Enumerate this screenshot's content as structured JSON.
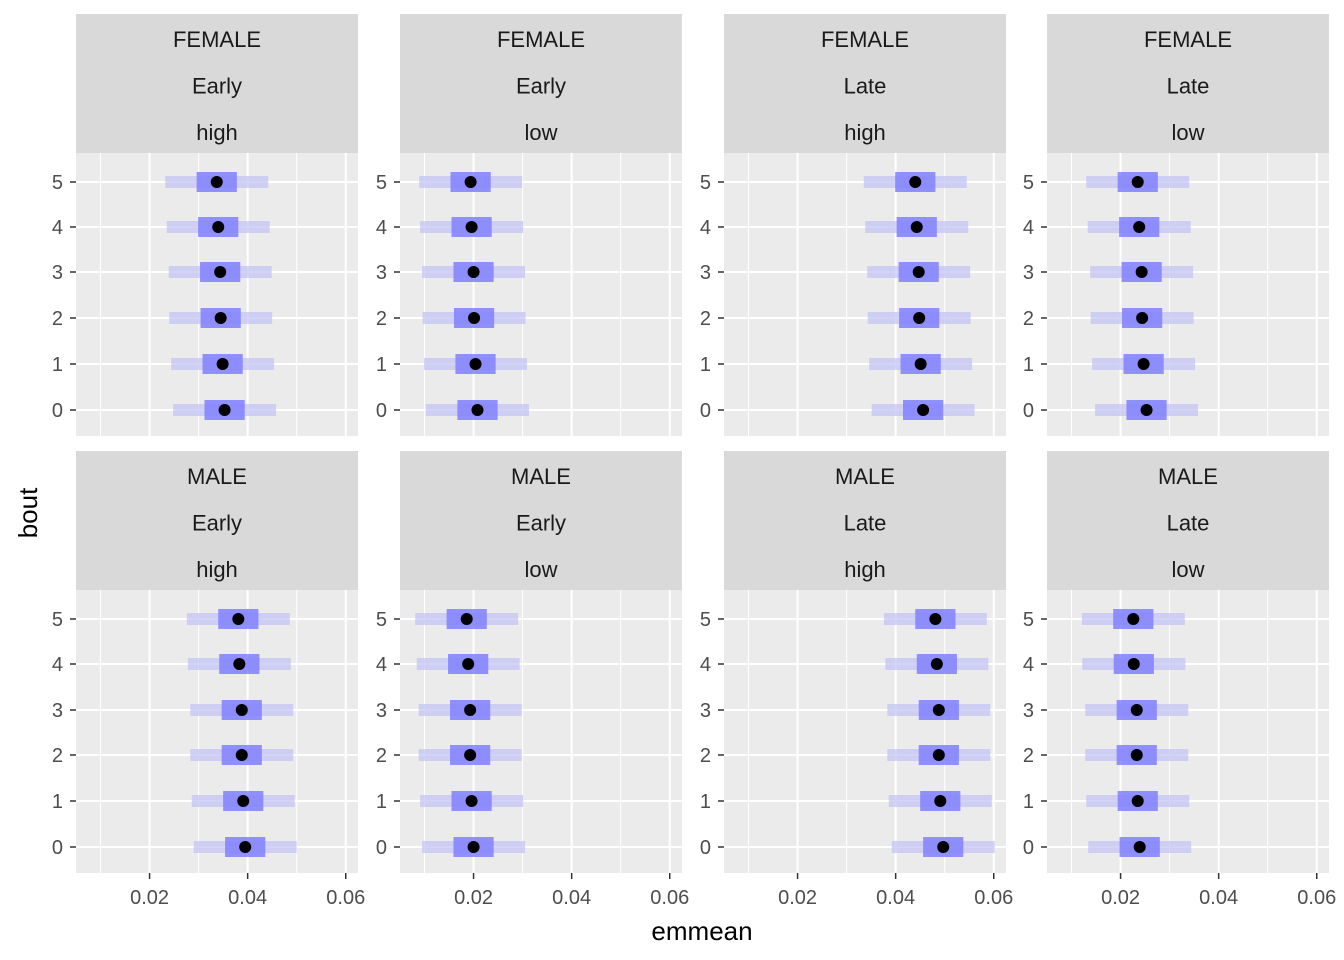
{
  "chart_data": {
    "type": "faceted-interval-dot",
    "x_label": "emmean",
    "y_label": "bout",
    "x_ticks": [
      0.02,
      0.04,
      0.06
    ],
    "x_tick_labels": [
      "0.02",
      "0.04",
      "0.06"
    ],
    "xlim": [
      0.005,
      0.0625
    ],
    "y_categories": [
      "0",
      "1",
      "2",
      "3",
      "4",
      "5"
    ],
    "colors": {
      "panel_bg": "#EBEBEB",
      "strip_bg": "#D9D9D9",
      "grid": "#FFFFFF",
      "point": "#000000",
      "inner_interval": "#8080FF",
      "outer_interval": "#C4C4F4"
    },
    "facets": [
      {
        "strip": [
          "FEMALE",
          "Early",
          "high"
        ],
        "bout": [
          "0",
          "1",
          "2",
          "3",
          "4",
          "5"
        ],
        "emmean": [
          0.0353,
          0.0349,
          0.0345,
          0.0344,
          0.034,
          0.0337
        ],
        "inner": [
          [
            0.0312,
            0.0394
          ],
          [
            0.0308,
            0.039
          ],
          [
            0.0304,
            0.0386
          ],
          [
            0.0303,
            0.0385
          ],
          [
            0.0299,
            0.0381
          ],
          [
            0.0296,
            0.0378
          ]
        ],
        "outer": [
          [
            0.0248,
            0.0458
          ],
          [
            0.0244,
            0.0454
          ],
          [
            0.024,
            0.045
          ],
          [
            0.0239,
            0.0449
          ],
          [
            0.0235,
            0.0445
          ],
          [
            0.0232,
            0.0442
          ]
        ]
      },
      {
        "strip": [
          "FEMALE",
          "Early",
          "low"
        ],
        "bout": [
          "0",
          "1",
          "2",
          "3",
          "4",
          "5"
        ],
        "emmean": [
          0.0208,
          0.0204,
          0.0201,
          0.02,
          0.0196,
          0.0194
        ],
        "inner": [
          [
            0.0167,
            0.0249
          ],
          [
            0.0163,
            0.0245
          ],
          [
            0.016,
            0.0242
          ],
          [
            0.0159,
            0.0241
          ],
          [
            0.0155,
            0.0237
          ],
          [
            0.0153,
            0.0235
          ]
        ],
        "outer": [
          [
            0.0103,
            0.0313
          ],
          [
            0.0099,
            0.0309
          ],
          [
            0.0096,
            0.0306
          ],
          [
            0.0095,
            0.0305
          ],
          [
            0.0091,
            0.0301
          ],
          [
            0.0089,
            0.0299
          ]
        ]
      },
      {
        "strip": [
          "FEMALE",
          "Late",
          "high"
        ],
        "bout": [
          "0",
          "1",
          "2",
          "3",
          "4",
          "5"
        ],
        "emmean": [
          0.0456,
          0.0451,
          0.0448,
          0.0447,
          0.0443,
          0.044
        ],
        "inner": [
          [
            0.0415,
            0.0497
          ],
          [
            0.041,
            0.0492
          ],
          [
            0.0407,
            0.0489
          ],
          [
            0.0406,
            0.0488
          ],
          [
            0.0402,
            0.0484
          ],
          [
            0.0399,
            0.0481
          ]
        ],
        "outer": [
          [
            0.0351,
            0.0561
          ],
          [
            0.0346,
            0.0556
          ],
          [
            0.0343,
            0.0553
          ],
          [
            0.0342,
            0.0552
          ],
          [
            0.0338,
            0.0548
          ],
          [
            0.0335,
            0.0545
          ]
        ]
      },
      {
        "strip": [
          "FEMALE",
          "Late",
          "low"
        ],
        "bout": [
          "0",
          "1",
          "2",
          "3",
          "4",
          "5"
        ],
        "emmean": [
          0.0253,
          0.0247,
          0.0244,
          0.0243,
          0.0238,
          0.0235
        ],
        "inner": [
          [
            0.0212,
            0.0294
          ],
          [
            0.0206,
            0.0288
          ],
          [
            0.0203,
            0.0285
          ],
          [
            0.0202,
            0.0284
          ],
          [
            0.0197,
            0.0279
          ],
          [
            0.0194,
            0.0276
          ]
        ],
        "outer": [
          [
            0.0148,
            0.0358
          ],
          [
            0.0142,
            0.0352
          ],
          [
            0.0139,
            0.0349
          ],
          [
            0.0138,
            0.0348
          ],
          [
            0.0133,
            0.0343
          ],
          [
            0.013,
            0.034
          ]
        ]
      },
      {
        "strip": [
          "MALE",
          "Early",
          "high"
        ],
        "bout": [
          "0",
          "1",
          "2",
          "3",
          "4",
          "5"
        ],
        "emmean": [
          0.0395,
          0.0391,
          0.0388,
          0.0388,
          0.0383,
          0.0381
        ],
        "inner": [
          [
            0.0354,
            0.0436
          ],
          [
            0.035,
            0.0432
          ],
          [
            0.0347,
            0.0429
          ],
          [
            0.0347,
            0.0429
          ],
          [
            0.0342,
            0.0424
          ],
          [
            0.034,
            0.0422
          ]
        ],
        "outer": [
          [
            0.029,
            0.05
          ],
          [
            0.0286,
            0.0496
          ],
          [
            0.0283,
            0.0493
          ],
          [
            0.0283,
            0.0493
          ],
          [
            0.0278,
            0.0488
          ],
          [
            0.0276,
            0.0486
          ]
        ]
      },
      {
        "strip": [
          "MALE",
          "Early",
          "low"
        ],
        "bout": [
          "0",
          "1",
          "2",
          "3",
          "4",
          "5"
        ],
        "emmean": [
          0.02,
          0.0196,
          0.0193,
          0.0193,
          0.0189,
          0.0186
        ],
        "inner": [
          [
            0.0159,
            0.0241
          ],
          [
            0.0155,
            0.0237
          ],
          [
            0.0152,
            0.0234
          ],
          [
            0.0152,
            0.0234
          ],
          [
            0.0148,
            0.023
          ],
          [
            0.0145,
            0.0227
          ]
        ],
        "outer": [
          [
            0.0095,
            0.0305
          ],
          [
            0.0091,
            0.0301
          ],
          [
            0.0088,
            0.0298
          ],
          [
            0.0088,
            0.0298
          ],
          [
            0.0084,
            0.0294
          ],
          [
            0.0081,
            0.0291
          ]
        ]
      },
      {
        "strip": [
          "MALE",
          "Late",
          "high"
        ],
        "bout": [
          "0",
          "1",
          "2",
          "3",
          "4",
          "5"
        ],
        "emmean": [
          0.0497,
          0.0491,
          0.0488,
          0.0488,
          0.0484,
          0.0481
        ],
        "inner": [
          [
            0.0456,
            0.0538
          ],
          [
            0.045,
            0.0532
          ],
          [
            0.0447,
            0.0529
          ],
          [
            0.0447,
            0.0529
          ],
          [
            0.0443,
            0.0525
          ],
          [
            0.044,
            0.0522
          ]
        ],
        "outer": [
          [
            0.0392,
            0.0602
          ],
          [
            0.0386,
            0.0596
          ],
          [
            0.0383,
            0.0593
          ],
          [
            0.0383,
            0.0593
          ],
          [
            0.0379,
            0.0589
          ],
          [
            0.0376,
            0.0586
          ]
        ]
      },
      {
        "strip": [
          "MALE",
          "Late",
          "low"
        ],
        "bout": [
          "0",
          "1",
          "2",
          "3",
          "4",
          "5"
        ],
        "emmean": [
          0.0239,
          0.0235,
          0.0233,
          0.0233,
          0.0227,
          0.0226
        ],
        "inner": [
          [
            0.0198,
            0.028
          ],
          [
            0.0194,
            0.0276
          ],
          [
            0.0192,
            0.0274
          ],
          [
            0.0192,
            0.0274
          ],
          [
            0.0186,
            0.0268
          ],
          [
            0.0185,
            0.0267
          ]
        ],
        "outer": [
          [
            0.0134,
            0.0344
          ],
          [
            0.013,
            0.034
          ],
          [
            0.0128,
            0.0338
          ],
          [
            0.0128,
            0.0338
          ],
          [
            0.0122,
            0.0332
          ],
          [
            0.0121,
            0.0331
          ]
        ]
      }
    ]
  }
}
